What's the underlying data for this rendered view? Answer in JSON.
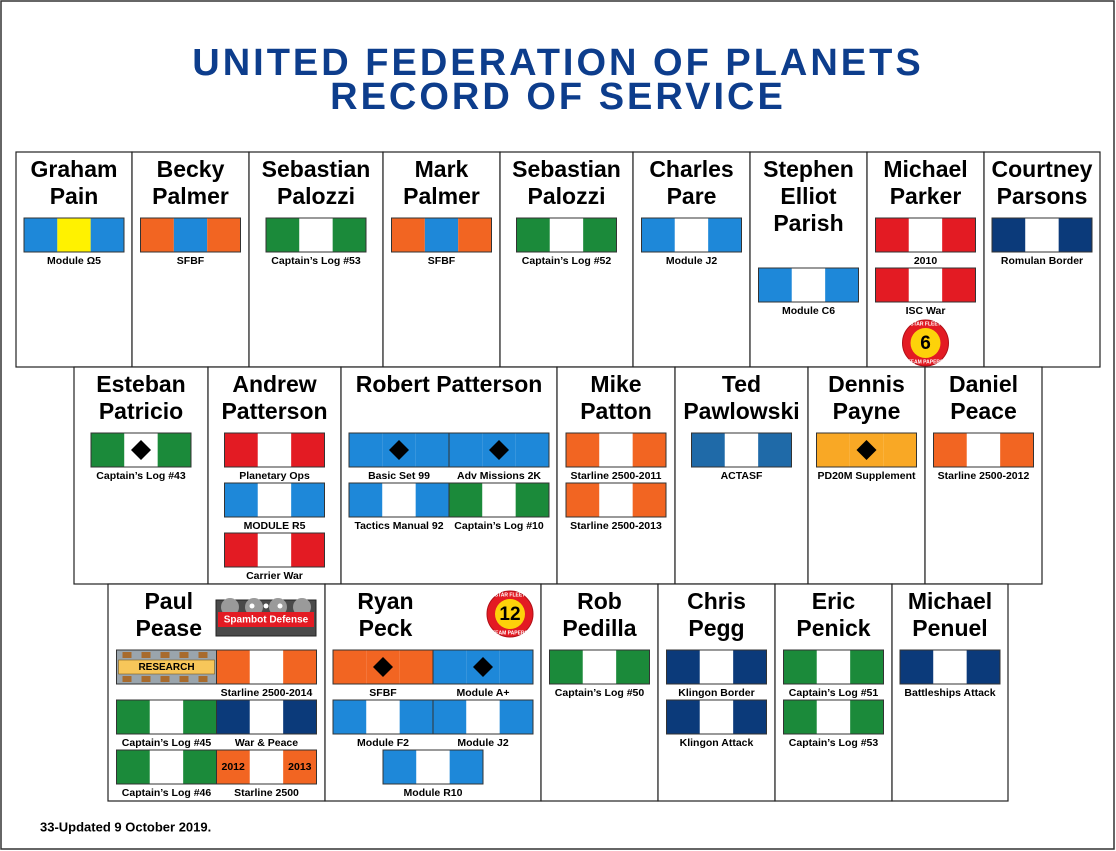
{
  "header": {
    "title": [
      "UNITED FEDERATION OF PLANETS",
      "RECORD OF SERVICE"
    ]
  },
  "rows": [
    [
      {
        "name": [
          "Graham",
          "Pain"
        ],
        "ribbons": [
          {
            "colors": [
              "#1e88d9",
              "#fff200",
              "#1e88d9"
            ],
            "caption": "Module Ω5"
          }
        ]
      },
      {
        "name": [
          "Becky",
          "Palmer"
        ],
        "ribbons": [
          {
            "colors": [
              "#f26522",
              "#1e88d9",
              "#f26522"
            ],
            "caption": "SFBF"
          }
        ]
      },
      {
        "name": [
          "Sebastian",
          "Palozzi"
        ],
        "ribbons": [
          {
            "colors": [
              "#1b8a3a",
              "#ffffff",
              "#1b8a3a"
            ],
            "caption": "Captain’s Log #53"
          }
        ]
      },
      {
        "name": [
          "Mark",
          "Palmer"
        ],
        "ribbons": [
          {
            "colors": [
              "#f26522",
              "#1e88d9",
              "#f26522"
            ],
            "caption": "SFBF"
          }
        ]
      },
      {
        "name": [
          "Sebastian",
          "Palozzi"
        ],
        "ribbons": [
          {
            "colors": [
              "#1b8a3a",
              "#ffffff",
              "#1b8a3a"
            ],
            "caption": "Captain’s Log #52"
          }
        ]
      },
      {
        "name": [
          "Charles",
          "Pare"
        ],
        "ribbons": [
          {
            "colors": [
              "#1e88d9",
              "#ffffff",
              "#1e88d9"
            ],
            "caption": "Module J2"
          }
        ]
      },
      {
        "name": [
          "Stephen",
          "Elliot",
          "Parish"
        ],
        "ribbons": [
          {
            "colors": [
              "#1e88d9",
              "#ffffff",
              "#1e88d9"
            ],
            "caption": "Module C6"
          }
        ]
      },
      {
        "name": [
          "Michael",
          "Parker"
        ],
        "ribbons": [
          {
            "colors": [
              "#e31b23",
              "#ffffff",
              "#e31b23"
            ],
            "caption": "2010"
          },
          {
            "colors": [
              "#e31b23",
              "#ffffff",
              "#e31b23"
            ],
            "caption": "ISC War"
          }
        ],
        "badge": {
          "number": "6",
          "top": "STAR FLEET",
          "bottom": "TEAM PAPERS"
        }
      },
      {
        "name": [
          "Courtney",
          "Parsons"
        ],
        "ribbons": [
          {
            "colors": [
              "#0b3a7a",
              "#ffffff",
              "#0b3a7a"
            ],
            "caption": "Romulan Border"
          }
        ]
      }
    ],
    [
      {
        "name": [
          "Esteban",
          "Patricio"
        ],
        "ribbons": [
          {
            "colors": [
              "#1b8a3a",
              "#ffffff",
              "#1b8a3a"
            ],
            "diamond": true,
            "caption": "Captain’s Log #43"
          }
        ]
      },
      {
        "name": [
          "Andrew",
          "Patterson"
        ],
        "ribbons": [
          {
            "colors": [
              "#e31b23",
              "#ffffff",
              "#e31b23"
            ],
            "caption": "Planetary Ops"
          },
          {
            "colors": [
              "#1e88d9",
              "#ffffff",
              "#1e88d9"
            ],
            "caption": "MODULE R5"
          },
          {
            "colors": [
              "#e31b23",
              "#ffffff",
              "#e31b23"
            ],
            "caption": "Carrier War"
          }
        ]
      },
      {
        "name": [
          "Robert Patterson"
        ],
        "ribbons": [
          {
            "colors": [
              "#1e88d9",
              "#1e88d9",
              "#1e88d9"
            ],
            "diamond": true,
            "caption": "Basic Set 99"
          },
          {
            "colors": [
              "#1e88d9",
              "#1e88d9",
              "#1e88d9"
            ],
            "diamond": true,
            "caption": "Adv Missions 2K"
          },
          {
            "colors": [
              "#1e88d9",
              "#ffffff",
              "#1e88d9"
            ],
            "caption": "Tactics Manual 92"
          },
          {
            "colors": [
              "#1b8a3a",
              "#ffffff",
              "#1b8a3a"
            ],
            "caption": "Captain’s Log #10"
          }
        ]
      },
      {
        "name": [
          "Mike",
          "Patton"
        ],
        "ribbons": [
          {
            "colors": [
              "#f26522",
              "#ffffff",
              "#f26522"
            ],
            "caption": "Starline 2500-2011"
          },
          {
            "colors": [
              "#f26522",
              "#ffffff",
              "#f26522"
            ],
            "caption": "Starline 2500-2013"
          }
        ]
      },
      {
        "name": [
          "Ted",
          "Pawlowski"
        ],
        "ribbons": [
          {
            "colors": [
              "#1f6aa8",
              "#ffffff",
              "#1f6aa8"
            ],
            "caption": "ACTASF"
          }
        ]
      },
      {
        "name": [
          "Dennis",
          "Payne"
        ],
        "ribbons": [
          {
            "colors": [
              "#f9a825",
              "#f9a825",
              "#f9a825"
            ],
            "diamond": true,
            "caption": "PD20M Supplement"
          }
        ]
      },
      {
        "name": [
          "Daniel",
          "Peace"
        ],
        "ribbons": [
          {
            "colors": [
              "#f26522",
              "#ffffff",
              "#f26522"
            ],
            "caption": "Starline 2500-2012"
          }
        ]
      }
    ],
    [
      {
        "name": [
          "Paul",
          "Pease"
        ],
        "ribbons": [
          {
            "plaque": "RESEARCH"
          },
          {
            "colors": [
              "#f26522",
              "#ffffff",
              "#f26522"
            ],
            "caption": "Starline 2500-2014"
          },
          {
            "colors": [
              "#1b8a3a",
              "#ffffff",
              "#1b8a3a"
            ],
            "caption": "Captain’s Log #45"
          },
          {
            "colors": [
              "#0b3a7a",
              "#ffffff",
              "#0b3a7a"
            ],
            "caption": "War & Peace"
          },
          {
            "colors": [
              "#1b8a3a",
              "#ffffff",
              "#1b8a3a"
            ],
            "caption": "Captain’s Log #46"
          },
          {
            "colors": [
              "#f26522",
              "#ffffff",
              "#f26522"
            ],
            "years": [
              "2012",
              "2013"
            ],
            "caption": "Starline 2500"
          }
        ],
        "badge": {
          "label": "Spambot Defense"
        }
      },
      {
        "name": [
          "Ryan",
          "Peck"
        ],
        "ribbons": [
          {
            "colors": [
              "#f26522",
              "#f26522",
              "#f26522"
            ],
            "diamond": true,
            "caption": "SFBF"
          },
          {
            "colors": [
              "#1e88d9",
              "#1e88d9",
              "#1e88d9"
            ],
            "diamond": true,
            "caption": "Module A+"
          },
          {
            "colors": [
              "#1e88d9",
              "#ffffff",
              "#1e88d9"
            ],
            "caption": "Module F2"
          },
          {
            "colors": [
              "#1e88d9",
              "#ffffff",
              "#1e88d9"
            ],
            "caption": "Module J2"
          },
          {
            "colors": [
              "#1e88d9",
              "#ffffff",
              "#1e88d9"
            ],
            "caption": "Module R10"
          }
        ],
        "badge": {
          "number": "12",
          "top": "STAR FLEET",
          "bottom": "TEAM PAPERS"
        }
      },
      {
        "name": [
          "Rob",
          "Pedilla"
        ],
        "ribbons": [
          {
            "colors": [
              "#1b8a3a",
              "#ffffff",
              "#1b8a3a"
            ],
            "caption": "Captain’s Log #50"
          }
        ]
      },
      {
        "name": [
          "Chris",
          "Pegg"
        ],
        "ribbons": [
          {
            "colors": [
              "#0b3a7a",
              "#ffffff",
              "#0b3a7a"
            ],
            "caption": "Klingon Border"
          },
          {
            "colors": [
              "#0b3a7a",
              "#ffffff",
              "#0b3a7a"
            ],
            "caption": "Klingon Attack"
          }
        ]
      },
      {
        "name": [
          "Eric",
          "Penick"
        ],
        "ribbons": [
          {
            "colors": [
              "#1b8a3a",
              "#ffffff",
              "#1b8a3a"
            ],
            "caption": "Captain’s Log #51"
          },
          {
            "colors": [
              "#1b8a3a",
              "#ffffff",
              "#1b8a3a"
            ],
            "caption": "Captain’s Log #53"
          }
        ]
      },
      {
        "name": [
          "Michael",
          "Penuel"
        ],
        "ribbons": [
          {
            "colors": [
              "#0b3a7a",
              "#ffffff",
              "#0b3a7a"
            ],
            "caption": "Battleships Attack"
          }
        ]
      }
    ]
  ],
  "footer": "33-Updated 9 October 2019."
}
